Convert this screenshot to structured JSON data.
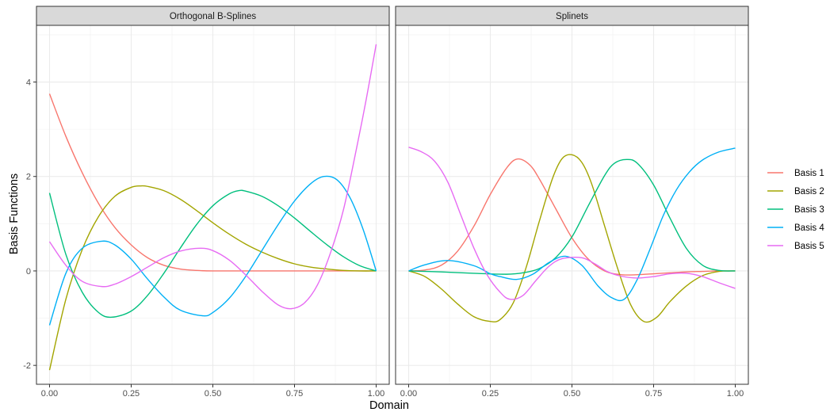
{
  "chart_data": {
    "type": "line",
    "xlabel": "Domain",
    "ylabel": "Basis Functions",
    "xlim": [
      -0.04,
      1.04
    ],
    "ylim": [
      -2.4,
      5.2
    ],
    "x_ticks": [
      0.0,
      0.25,
      0.5,
      0.75,
      1.0
    ],
    "x_tick_labels": [
      "0.00",
      "0.25",
      "0.50",
      "0.75",
      "1.00"
    ],
    "y_ticks": [
      -2,
      0,
      2,
      4
    ],
    "y_tick_labels": [
      "-2",
      "0",
      "2",
      "4"
    ],
    "grid": true,
    "legend_position": "right",
    "legend": [
      {
        "name": "Basis 1",
        "color": "#F8766D"
      },
      {
        "name": "Basis 2",
        "color": "#A3A500"
      },
      {
        "name": "Basis 3",
        "color": "#00BF7D"
      },
      {
        "name": "Basis 4",
        "color": "#00B0F6"
      },
      {
        "name": "Basis 5",
        "color": "#E76BF3"
      }
    ],
    "panels": [
      {
        "title": "Orthogonal B-Splines",
        "series": [
          {
            "name": "Basis 1",
            "x": [
              0.0,
              0.05,
              0.1,
              0.15,
              0.2,
              0.25,
              0.3,
              0.35,
              0.4,
              0.45,
              0.5,
              0.6,
              0.7,
              0.8,
              0.9,
              1.0
            ],
            "y": [
              3.75,
              2.85,
              2.08,
              1.43,
              0.92,
              0.55,
              0.28,
              0.12,
              0.04,
              0.01,
              0.0,
              0.0,
              0.0,
              0.0,
              0.0,
              0.0
            ]
          },
          {
            "name": "Basis 2",
            "x": [
              0.0,
              0.05,
              0.1,
              0.15,
              0.2,
              0.25,
              0.28,
              0.3,
              0.35,
              0.4,
              0.45,
              0.5,
              0.55,
              0.6,
              0.65,
              0.7,
              0.75,
              0.8,
              0.85,
              0.9,
              0.95,
              1.0
            ],
            "y": [
              -2.1,
              -0.6,
              0.45,
              1.15,
              1.58,
              1.77,
              1.8,
              1.79,
              1.7,
              1.52,
              1.28,
              1.02,
              0.78,
              0.57,
              0.4,
              0.26,
              0.15,
              0.08,
              0.04,
              0.01,
              0.0,
              0.0
            ]
          },
          {
            "name": "Basis 3",
            "x": [
              0.0,
              0.05,
              0.1,
              0.15,
              0.19,
              0.25,
              0.3,
              0.35,
              0.4,
              0.45,
              0.5,
              0.55,
              0.58,
              0.6,
              0.65,
              0.7,
              0.75,
              0.8,
              0.85,
              0.9,
              0.95,
              1.0
            ],
            "y": [
              1.65,
              0.35,
              -0.45,
              -0.88,
              -0.98,
              -0.85,
              -0.52,
              -0.05,
              0.48,
              0.98,
              1.38,
              1.63,
              1.7,
              1.69,
              1.58,
              1.38,
              1.12,
              0.83,
              0.55,
              0.3,
              0.11,
              0.0
            ]
          },
          {
            "name": "Basis 4",
            "x": [
              0.0,
              0.05,
              0.1,
              0.16,
              0.2,
              0.25,
              0.3,
              0.35,
              0.4,
              0.47,
              0.5,
              0.55,
              0.6,
              0.65,
              0.7,
              0.75,
              0.8,
              0.84,
              0.88,
              0.92,
              0.96,
              1.0
            ],
            "y": [
              -1.15,
              -0.05,
              0.48,
              0.63,
              0.55,
              0.25,
              -0.17,
              -0.55,
              -0.83,
              -0.95,
              -0.88,
              -0.58,
              -0.12,
              0.43,
              0.98,
              1.48,
              1.85,
              2.0,
              1.93,
              1.55,
              0.88,
              0.0
            ]
          },
          {
            "name": "Basis 5",
            "x": [
              0.0,
              0.05,
              0.1,
              0.16,
              0.2,
              0.25,
              0.3,
              0.35,
              0.4,
              0.46,
              0.5,
              0.55,
              0.6,
              0.65,
              0.7,
              0.74,
              0.78,
              0.82,
              0.86,
              0.9,
              0.94,
              0.97,
              1.0
            ],
            "y": [
              0.62,
              0.12,
              -0.22,
              -0.33,
              -0.28,
              -0.12,
              0.08,
              0.28,
              0.42,
              0.48,
              0.43,
              0.23,
              -0.08,
              -0.43,
              -0.72,
              -0.8,
              -0.68,
              -0.3,
              0.38,
              1.3,
              2.6,
              3.65,
              4.8
            ]
          }
        ]
      },
      {
        "title": "Splinets",
        "series": [
          {
            "name": "Basis 1",
            "x": [
              0.0,
              0.05,
              0.1,
              0.15,
              0.2,
              0.25,
              0.3,
              0.333,
              0.37,
              0.4,
              0.45,
              0.5,
              0.55,
              0.6,
              0.65,
              0.7,
              0.75,
              0.8,
              0.85,
              0.9,
              0.95,
              1.0
            ],
            "y": [
              0.0,
              0.02,
              0.12,
              0.42,
              0.95,
              1.62,
              2.18,
              2.37,
              2.25,
              1.95,
              1.32,
              0.7,
              0.25,
              0.0,
              -0.08,
              -0.08,
              -0.06,
              -0.04,
              -0.02,
              -0.01,
              0.0,
              0.0
            ]
          },
          {
            "name": "Basis 2",
            "x": [
              0.0,
              0.05,
              0.1,
              0.15,
              0.2,
              0.25,
              0.28,
              0.32,
              0.36,
              0.4,
              0.44,
              0.47,
              0.5,
              0.53,
              0.56,
              0.6,
              0.64,
              0.68,
              0.72,
              0.76,
              0.8,
              0.85,
              0.9,
              0.95,
              1.0
            ],
            "y": [
              0.0,
              -0.12,
              -0.38,
              -0.7,
              -0.97,
              -1.07,
              -1.03,
              -0.68,
              0.08,
              1.05,
              1.95,
              2.38,
              2.46,
              2.3,
              1.85,
              0.95,
              0.05,
              -0.72,
              -1.07,
              -0.98,
              -0.65,
              -0.32,
              -0.1,
              -0.01,
              0.0
            ]
          },
          {
            "name": "Basis 3",
            "x": [
              0.0,
              0.1,
              0.2,
              0.3,
              0.35,
              0.4,
              0.45,
              0.5,
              0.55,
              0.6,
              0.63,
              0.667,
              0.7,
              0.75,
              0.8,
              0.85,
              0.9,
              0.95,
              1.0
            ],
            "y": [
              0.0,
              -0.02,
              -0.05,
              -0.07,
              -0.04,
              0.05,
              0.28,
              0.72,
              1.38,
              2.02,
              2.28,
              2.36,
              2.28,
              1.82,
              1.12,
              0.48,
              0.12,
              0.01,
              0.0
            ]
          },
          {
            "name": "Basis 4",
            "x": [
              0.0,
              0.05,
              0.12,
              0.2,
              0.25,
              0.28,
              0.33,
              0.38,
              0.43,
              0.48,
              0.53,
              0.58,
              0.62,
              0.66,
              0.7,
              0.74,
              0.78,
              0.82,
              0.86,
              0.9,
              0.95,
              1.0
            ],
            "y": [
              0.0,
              0.13,
              0.22,
              0.11,
              -0.06,
              -0.12,
              -0.18,
              -0.07,
              0.18,
              0.31,
              0.12,
              -0.32,
              -0.56,
              -0.6,
              -0.18,
              0.48,
              1.18,
              1.72,
              2.1,
              2.35,
              2.52,
              2.6
            ]
          },
          {
            "name": "Basis 5",
            "x": [
              0.0,
              0.04,
              0.08,
              0.12,
              0.16,
              0.2,
              0.24,
              0.28,
              0.31,
              0.35,
              0.39,
              0.43,
              0.47,
              0.53,
              0.57,
              0.61,
              0.65,
              0.7,
              0.75,
              0.8,
              0.85,
              0.9,
              0.95,
              1.0
            ],
            "y": [
              2.62,
              2.52,
              2.32,
              1.88,
              1.18,
              0.48,
              -0.08,
              -0.45,
              -0.6,
              -0.52,
              -0.2,
              0.1,
              0.26,
              0.28,
              0.15,
              -0.02,
              -0.11,
              -0.15,
              -0.12,
              -0.06,
              -0.05,
              -0.12,
              -0.25,
              -0.37
            ]
          }
        ]
      }
    ]
  }
}
